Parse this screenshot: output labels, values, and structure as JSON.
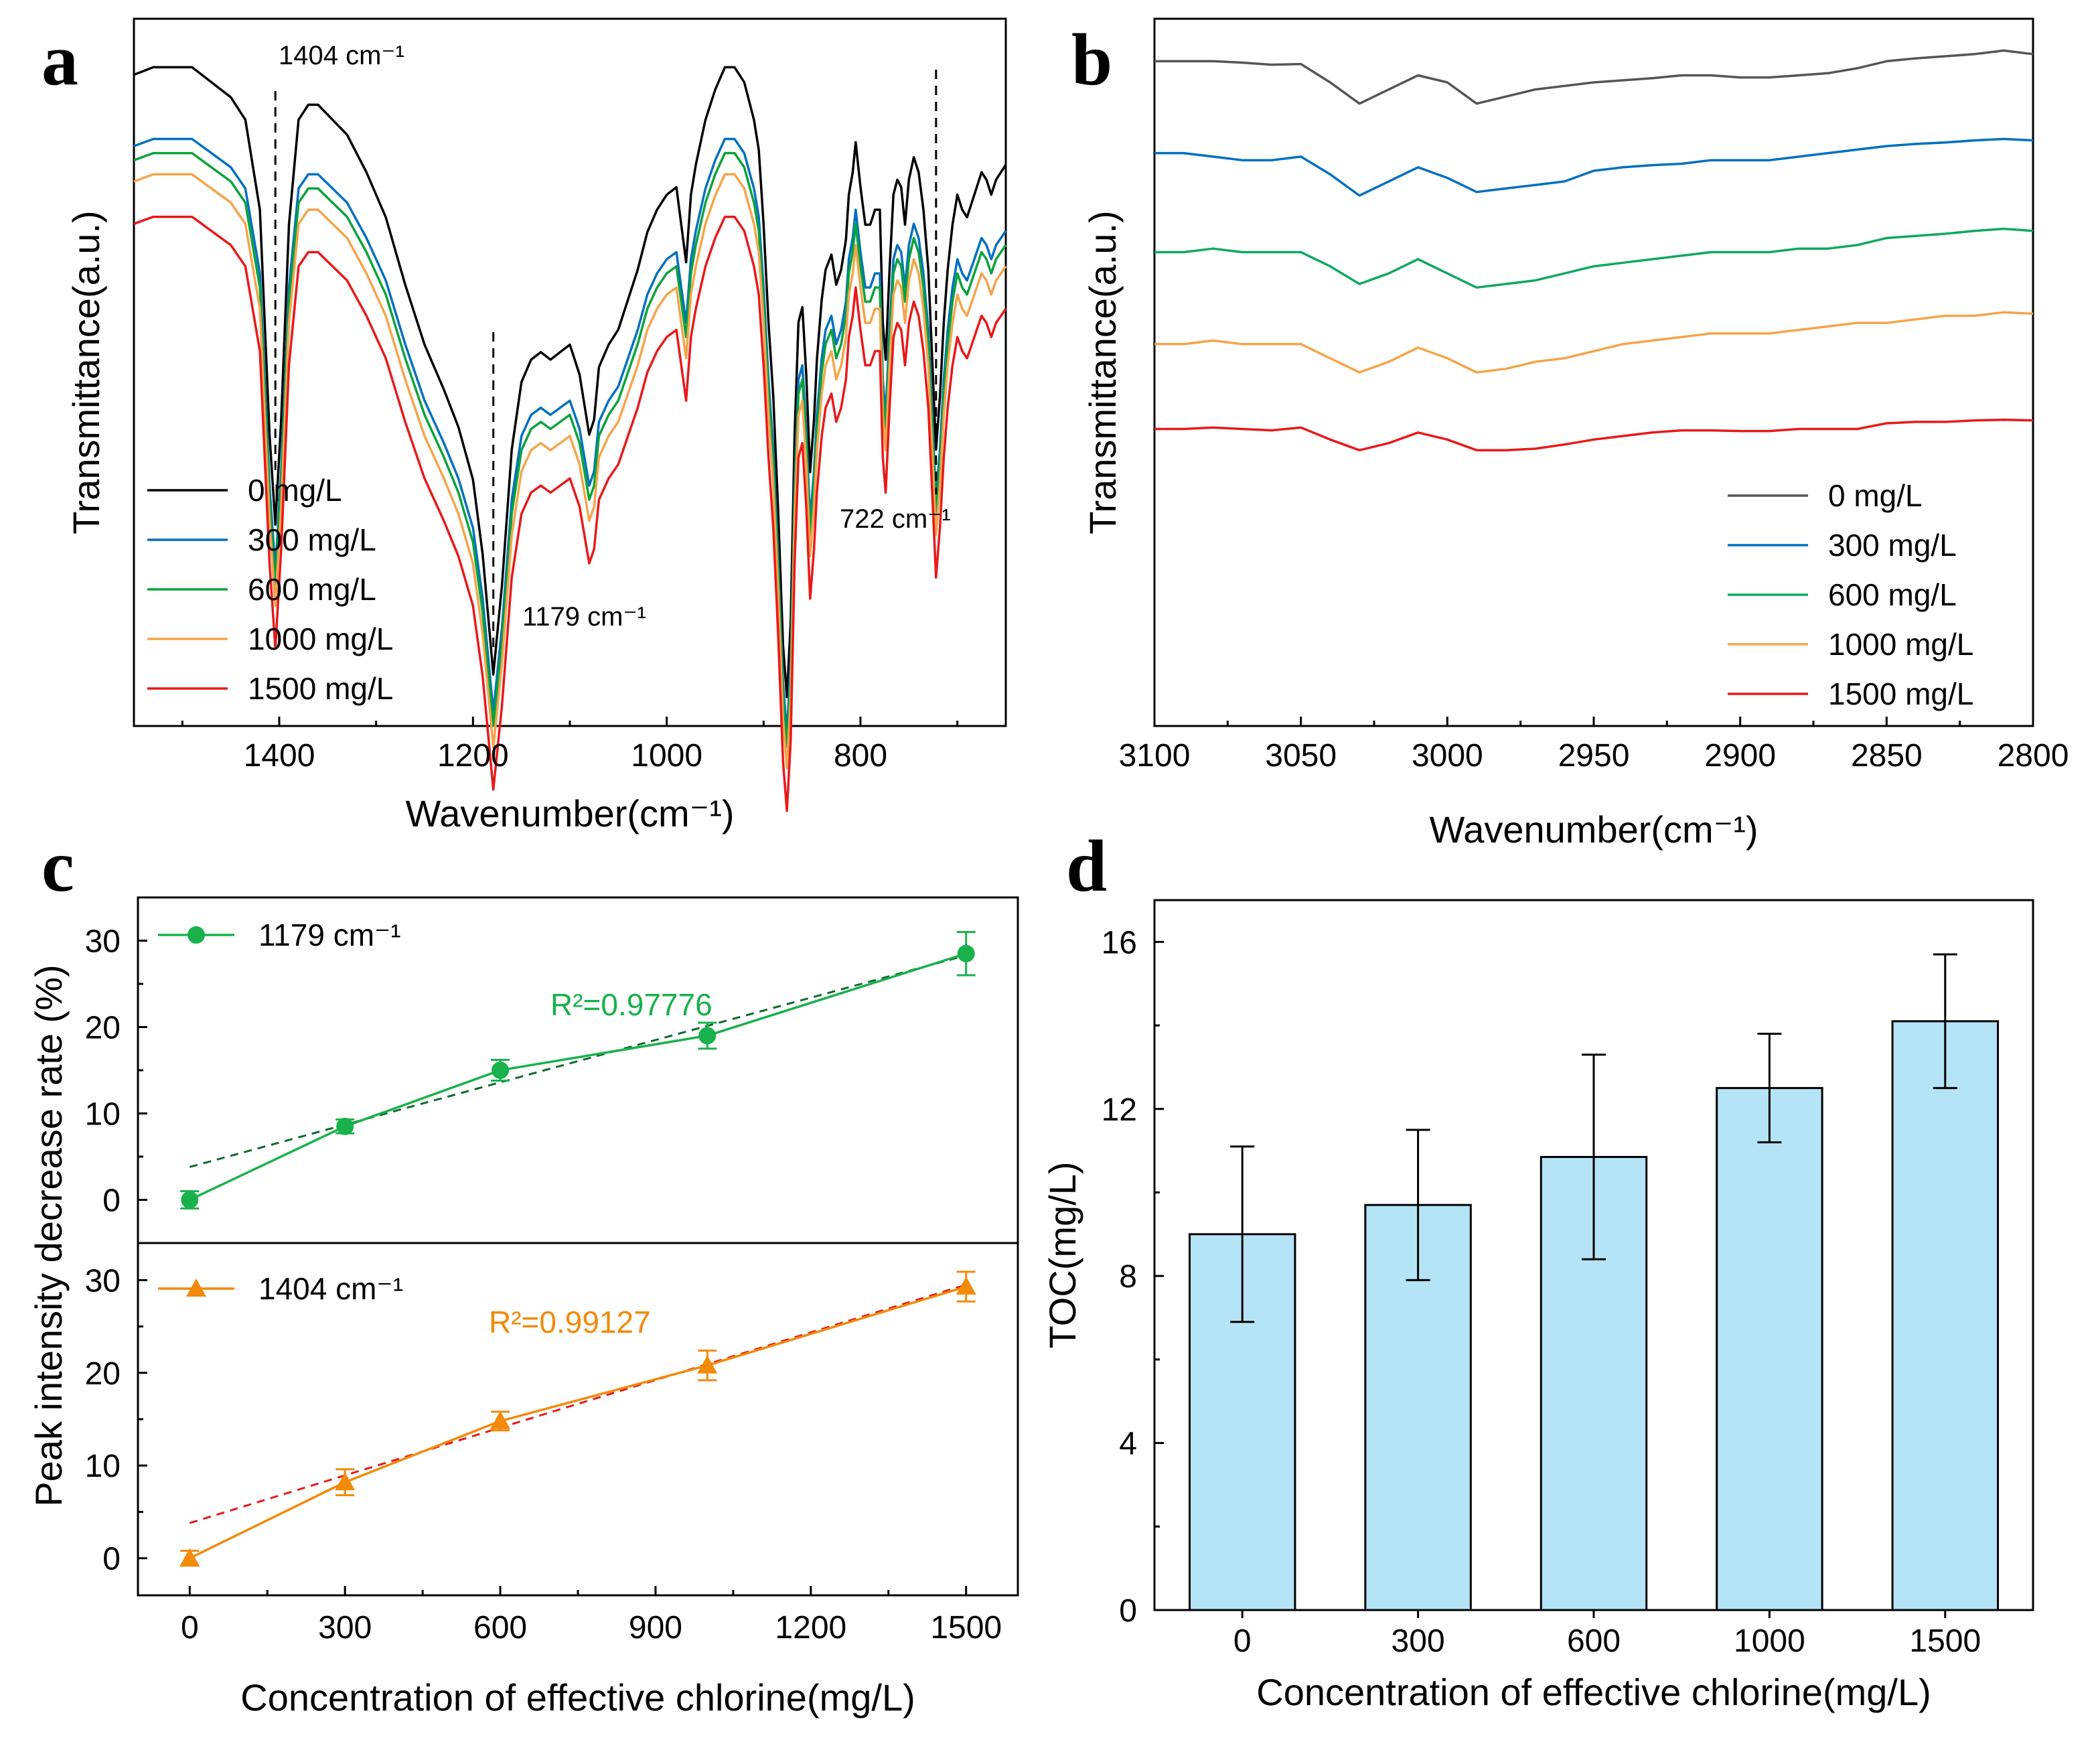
{
  "colors": {
    "c0": "#000000",
    "c300": "#0070c0",
    "c600": "#0aa33a",
    "c1000": "#f5a44a",
    "c1500": "#e8191a",
    "b_c600": "#10a860",
    "green_marker": "#18b14b",
    "orange_marker": "#f28a0a",
    "fit_green": "#0e6a2a",
    "fit_red": "#e8191a",
    "bar_fill": "#b4e4f6"
  },
  "chart_data": [
    {
      "panel": "a",
      "type": "line",
      "xlabel": "Wavenumber(cm⁻¹)",
      "ylabel": "Transmittance(a.u.)",
      "xlim": [
        1550,
        650
      ],
      "ylim": [
        0,
        100
      ],
      "xticks": [
        "1400",
        "1200",
        "1000",
        "800"
      ],
      "legend": [
        "0 mg/L",
        "300 mg/L",
        "600 mg/L",
        "1000 mg/L",
        "1500 mg/L"
      ],
      "annotations": [
        {
          "label": "1404 cm⁻¹",
          "x": 1404
        },
        {
          "label": "1179 cm⁻¹",
          "x": 1179
        },
        {
          "label": "722 cm⁻¹",
          "x": 722
        }
      ],
      "base_profile": {
        "x": [
          1550,
          1530,
          1510,
          1490,
          1470,
          1450,
          1435,
          1420,
          1410,
          1404,
          1398,
          1390,
          1380,
          1370,
          1360,
          1345,
          1330,
          1310,
          1290,
          1270,
          1250,
          1230,
          1215,
          1200,
          1190,
          1179,
          1170,
          1160,
          1150,
          1140,
          1130,
          1120,
          1110,
          1100,
          1090,
          1080,
          1075,
          1070,
          1060,
          1050,
          1040,
          1030,
          1020,
          1010,
          1000,
          990,
          980,
          975,
          970,
          960,
          950,
          940,
          930,
          920,
          910,
          905,
          900,
          895,
          890,
          885,
          880,
          876,
          872,
          868,
          864,
          860,
          856,
          852,
          848,
          845,
          840,
          836,
          830,
          825,
          820,
          815,
          812,
          808,
          805,
          800,
          795,
          790,
          785,
          780,
          777,
          774,
          770,
          766,
          762,
          758,
          754,
          750,
          745,
          740,
          735,
          730,
          726,
          722,
          718,
          714,
          710,
          705,
          700,
          695,
          690,
          685,
          680,
          675,
          670,
          665,
          660,
          650
        ],
        "y": [
          88,
          89,
          89,
          89,
          87,
          85,
          82,
          70,
          40,
          28,
          42,
          68,
          82,
          84,
          84,
          82,
          80,
          75,
          69,
          60,
          52,
          46,
          41,
          34,
          24,
          8,
          20,
          38,
          47,
          50,
          51,
          50,
          51,
          52,
          48,
          40,
          42,
          49,
          52,
          54,
          58,
          62,
          67,
          70,
          72,
          73,
          63,
          72,
          76,
          82,
          86,
          89,
          89,
          87,
          82,
          78,
          68,
          55,
          45,
          30,
          12,
          5,
          15,
          40,
          55,
          57,
          48,
          35,
          42,
          50,
          58,
          62,
          64,
          60,
          62,
          66,
          72,
          75,
          79,
          73,
          68,
          68,
          70,
          70,
          55,
          50,
          62,
          72,
          74,
          73,
          68,
          74,
          77,
          75,
          70,
          62,
          50,
          38,
          45,
          55,
          62,
          68,
          72,
          70,
          69,
          71,
          73,
          75,
          74,
          72,
          74,
          76
        ]
      },
      "series_offsets": [
        {
          "name": "0 mg/L",
          "offset": 0,
          "scale": 1.06
        },
        {
          "name": "300 mg/L",
          "offset": -6,
          "scale": 1.0
        },
        {
          "name": "600 mg/L",
          "offset": -8,
          "scale": 1.0
        },
        {
          "name": "1000 mg/L",
          "offset": -11,
          "scale": 1.0
        },
        {
          "name": "1500 mg/L",
          "offset": -17,
          "scale": 1.0
        }
      ]
    },
    {
      "panel": "b",
      "type": "line",
      "xlabel": "Wavenumber(cm⁻¹)",
      "ylabel": "Transmittance(a.u.)",
      "xlim": [
        3100,
        2800
      ],
      "ylim": [
        0,
        100
      ],
      "xticks": [
        "3100",
        "3050",
        "3000",
        "2950",
        "2900",
        "2850",
        "2800"
      ],
      "legend": [
        "0 mg/L",
        "300 mg/L",
        "600 mg/L",
        "1000 mg/L",
        "1500 mg/L"
      ],
      "profile_x": [
        3100,
        3090,
        3080,
        3070,
        3060,
        3050,
        3040,
        3030,
        3020,
        3010,
        3000,
        2990,
        2980,
        2970,
        2960,
        2950,
        2940,
        2930,
        2920,
        2910,
        2900,
        2890,
        2880,
        2870,
        2860,
        2850,
        2840,
        2830,
        2820,
        2810,
        2800
      ],
      "series": [
        {
          "name": "0 mg/L",
          "y": [
            94,
            94,
            94,
            93.8,
            93.5,
            93.6,
            91,
            88,
            90,
            92,
            91,
            88,
            89,
            90,
            90.5,
            91,
            91.3,
            91.6,
            92,
            92,
            91.7,
            91.7,
            92,
            92.3,
            93,
            94,
            94.4,
            94.7,
            95,
            95.5,
            95
          ]
        },
        {
          "name": "300 mg/L",
          "y": [
            81,
            81,
            80.5,
            80,
            80,
            80.5,
            78,
            75,
            77,
            79,
            77.5,
            75.5,
            76,
            76.5,
            77,
            78.5,
            79,
            79.3,
            79.5,
            80,
            80,
            80,
            80.5,
            81,
            81.5,
            82,
            82.3,
            82.5,
            82.8,
            83,
            82.8
          ]
        },
        {
          "name": "600 mg/L",
          "y": [
            67,
            67,
            67.5,
            67,
            67,
            67,
            65,
            62.5,
            64,
            66,
            64,
            62,
            62.5,
            63,
            64,
            65,
            65.5,
            66,
            66.5,
            67,
            67,
            67,
            67.5,
            67.5,
            68,
            69,
            69.3,
            69.6,
            70,
            70.3,
            70
          ]
        },
        {
          "name": "1000 mg/L",
          "y": [
            54,
            54,
            54.5,
            54,
            54,
            54,
            52,
            50,
            51.5,
            53.5,
            52,
            50,
            50.5,
            51.5,
            52,
            53,
            54,
            54.5,
            55,
            55.5,
            55.5,
            55.5,
            56,
            56.5,
            57,
            57,
            57.5,
            58,
            58,
            58.5,
            58.3
          ]
        },
        {
          "name": "1500 mg/L",
          "y": [
            42,
            42,
            42.2,
            42,
            41.8,
            42.2,
            40.5,
            39,
            40,
            41.5,
            40.5,
            39,
            39,
            39.2,
            39.8,
            40.5,
            41,
            41.5,
            41.8,
            41.8,
            41.7,
            41.7,
            42,
            42,
            42,
            42.8,
            43,
            43,
            43.2,
            43.3,
            43.2
          ]
        }
      ]
    },
    {
      "panel": "c",
      "type": "line",
      "xlabel": "Concentration of effective chlorine(mg/L)",
      "ylabel": "Peak intensity decrease rate (%)",
      "xlim": [
        -100,
        1600
      ],
      "xticks": [
        "0",
        "300",
        "600",
        "900",
        "1200",
        "1500"
      ],
      "subplots": [
        {
          "name": "1179 cm⁻¹",
          "marker": "circle",
          "ylim": [
            -5,
            35
          ],
          "yticks": [
            "0",
            "10",
            "20",
            "30"
          ],
          "x": [
            0,
            300,
            600,
            1000,
            1500
          ],
          "y": [
            0,
            8.5,
            15,
            19,
            28.5
          ],
          "err": [
            1.0,
            0.8,
            1.2,
            1.5,
            2.5
          ],
          "fit": {
            "x": [
              0,
              1500
            ],
            "y": [
              3.8,
              28.3
            ]
          },
          "r2": "R²=0.97776"
        },
        {
          "name": "1404 cm⁻¹",
          "marker": "triangle",
          "ylim": [
            -4,
            34
          ],
          "yticks": [
            "0",
            "10",
            "20",
            "30"
          ],
          "x": [
            0,
            300,
            600,
            1000,
            1500
          ],
          "y": [
            0,
            8.2,
            14.8,
            20.8,
            29.3
          ],
          "err": [
            0.8,
            1.4,
            1.0,
            1.6,
            1.6
          ],
          "fit": {
            "x": [
              0,
              1500
            ],
            "y": [
              3.8,
              29.5
            ]
          },
          "r2": "R²=0.99127"
        }
      ]
    },
    {
      "panel": "d",
      "type": "bar",
      "xlabel": "Concentration of effective chlorine(mg/L)",
      "ylabel": "TOC(mg/L)",
      "categories": [
        "0",
        "300",
        "600",
        "1000",
        "1500"
      ],
      "values": [
        9.0,
        9.7,
        10.85,
        12.5,
        14.1
      ],
      "err_low": [
        6.9,
        7.9,
        8.4,
        11.2,
        12.5
      ],
      "err_high": [
        11.1,
        11.5,
        13.3,
        13.8,
        15.7
      ],
      "ylim": [
        0,
        17
      ],
      "yticks": [
        "0",
        "4",
        "8",
        "12",
        "16"
      ]
    }
  ],
  "labels": {
    "panel_a": "a",
    "panel_b": "b",
    "panel_c": "c",
    "panel_d": "d"
  }
}
